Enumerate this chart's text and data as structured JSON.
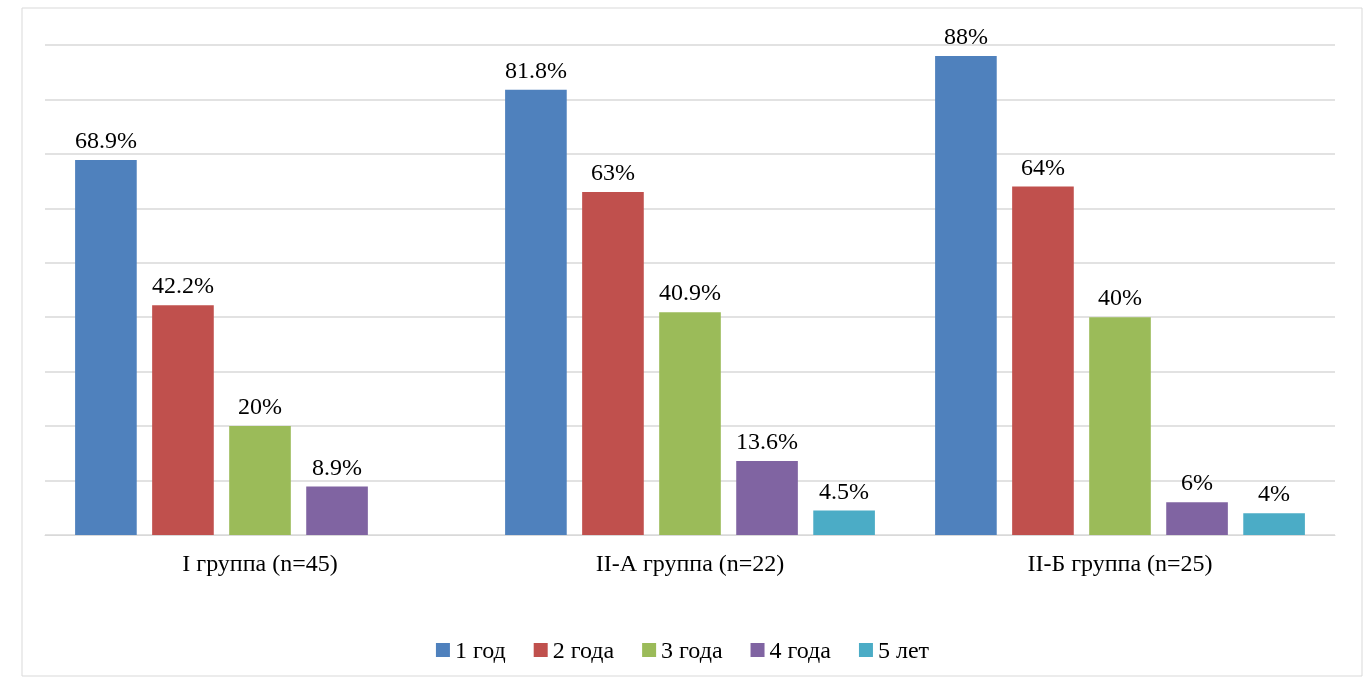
{
  "chart_data": {
    "type": "bar",
    "categories": [
      "I группа (n=45)",
      "II-А группа (n=22)",
      "II-Б группа (n=25)"
    ],
    "series": [
      {
        "name": "1 год",
        "color": "#4f81bd",
        "values": [
          68.9,
          81.8,
          88
        ],
        "value_labels": [
          "68.9%",
          "81.8%",
          "88%"
        ]
      },
      {
        "name": "2 года",
        "color": "#c0504d",
        "values": [
          42.2,
          63,
          64
        ],
        "value_labels": [
          "42.2%",
          "63%",
          "64%"
        ]
      },
      {
        "name": "3 года",
        "color": "#9bbb59",
        "values": [
          20,
          40.9,
          40
        ],
        "value_labels": [
          "20%",
          "40.9%",
          "40%"
        ]
      },
      {
        "name": "4 года",
        "color": "#8064a2",
        "values": [
          8.9,
          13.6,
          6
        ],
        "value_labels": [
          "8.9%",
          "13.6%",
          "6%"
        ]
      },
      {
        "name": "5 лет",
        "color": "#4bacc6",
        "values": [
          null,
          4.5,
          4
        ],
        "value_labels": [
          null,
          "4.5%",
          "4%"
        ]
      }
    ],
    "tick_labels": "x",
    "grid": "y",
    "legend": "bottom"
  }
}
